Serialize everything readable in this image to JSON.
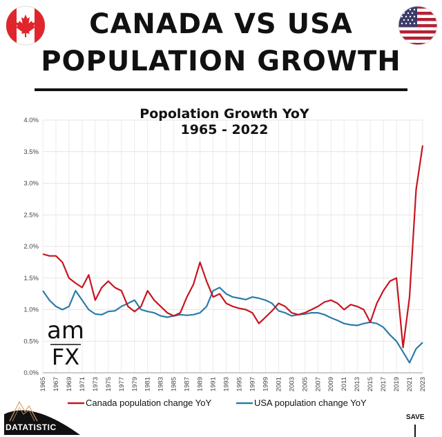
{
  "header": {
    "line1": "CANADA VS USA",
    "line2": "POPULATION GROWTH",
    "flag_left": "canada-flag-icon",
    "flag_right": "usa-flag-icon"
  },
  "watermark": {
    "line1": "am",
    "line2": "FX"
  },
  "footer": {
    "brand": "DATATISTIC",
    "save": "SAVE"
  },
  "colors": {
    "canada": "#c8141e",
    "usa": "#2a7ca8",
    "canada_flag": "#e0262c",
    "usa_blue": "#3c3b6e"
  },
  "chart_data": {
    "type": "line",
    "title": "Popolation Growth YoY",
    "subtitle": "1965 - 2022",
    "xlabel": "",
    "ylabel": "",
    "ylim": [
      0,
      4
    ],
    "yticks": [
      "0.0%",
      "0.5%",
      "1.0%",
      "1.5%",
      "2.0%",
      "2.5%",
      "3.0%",
      "3.5%",
      "4.0%"
    ],
    "xticks": [
      "1965",
      "1967",
      "1969",
      "1971",
      "1973",
      "1975",
      "1977",
      "1979",
      "1981",
      "1983",
      "1985",
      "1987",
      "1989",
      "1991",
      "1993",
      "1995",
      "1997",
      "1999",
      "2001",
      "2003",
      "2005",
      "2007",
      "2009",
      "2011",
      "2013",
      "2015",
      "2017",
      "2019",
      "2021",
      "2023"
    ],
    "grid": true,
    "legend_position": "bottom",
    "x": [
      1965,
      1966,
      1967,
      1968,
      1969,
      1970,
      1971,
      1972,
      1973,
      1974,
      1975,
      1976,
      1977,
      1978,
      1979,
      1980,
      1981,
      1982,
      1983,
      1984,
      1985,
      1986,
      1987,
      1988,
      1989,
      1990,
      1991,
      1992,
      1993,
      1994,
      1995,
      1996,
      1997,
      1998,
      1999,
      2000,
      2001,
      2002,
      2003,
      2004,
      2005,
      2006,
      2007,
      2008,
      2009,
      2010,
      2011,
      2012,
      2013,
      2014,
      2015,
      2016,
      2017,
      2018,
      2019,
      2020,
      2021,
      2022,
      2023
    ],
    "series": [
      {
        "name": "Canada population change YoY",
        "values": [
          1.88,
          1.85,
          1.85,
          1.75,
          1.5,
          1.42,
          1.35,
          1.55,
          1.15,
          1.35,
          1.45,
          1.35,
          1.3,
          1.05,
          0.97,
          1.05,
          1.3,
          1.15,
          1.05,
          0.95,
          0.9,
          0.95,
          1.2,
          1.4,
          1.75,
          1.45,
          1.2,
          1.25,
          1.1,
          1.05,
          1.02,
          1.0,
          0.95,
          0.78,
          0.88,
          0.98,
          1.1,
          1.05,
          0.95,
          0.92,
          0.95,
          1.0,
          1.05,
          1.12,
          1.15,
          1.1,
          1.0,
          1.08,
          1.05,
          1.0,
          0.8,
          1.1,
          1.3,
          1.45,
          1.5,
          0.4,
          1.2,
          2.9,
          3.6
        ]
      },
      {
        "name": "USA population change YoY",
        "values": [
          1.3,
          1.15,
          1.05,
          1.0,
          1.05,
          1.3,
          1.15,
          1.0,
          0.93,
          0.92,
          0.97,
          0.98,
          1.05,
          1.1,
          1.15,
          1.0,
          0.97,
          0.95,
          0.9,
          0.88,
          0.9,
          0.92,
          0.91,
          0.92,
          0.95,
          1.05,
          1.3,
          1.35,
          1.25,
          1.2,
          1.18,
          1.16,
          1.2,
          1.18,
          1.15,
          1.1,
          0.98,
          0.95,
          0.9,
          0.92,
          0.93,
          0.95,
          0.95,
          0.92,
          0.87,
          0.83,
          0.78,
          0.76,
          0.75,
          0.78,
          0.8,
          0.78,
          0.72,
          0.6,
          0.5,
          0.33,
          0.16,
          0.38,
          0.48
        ]
      }
    ]
  }
}
